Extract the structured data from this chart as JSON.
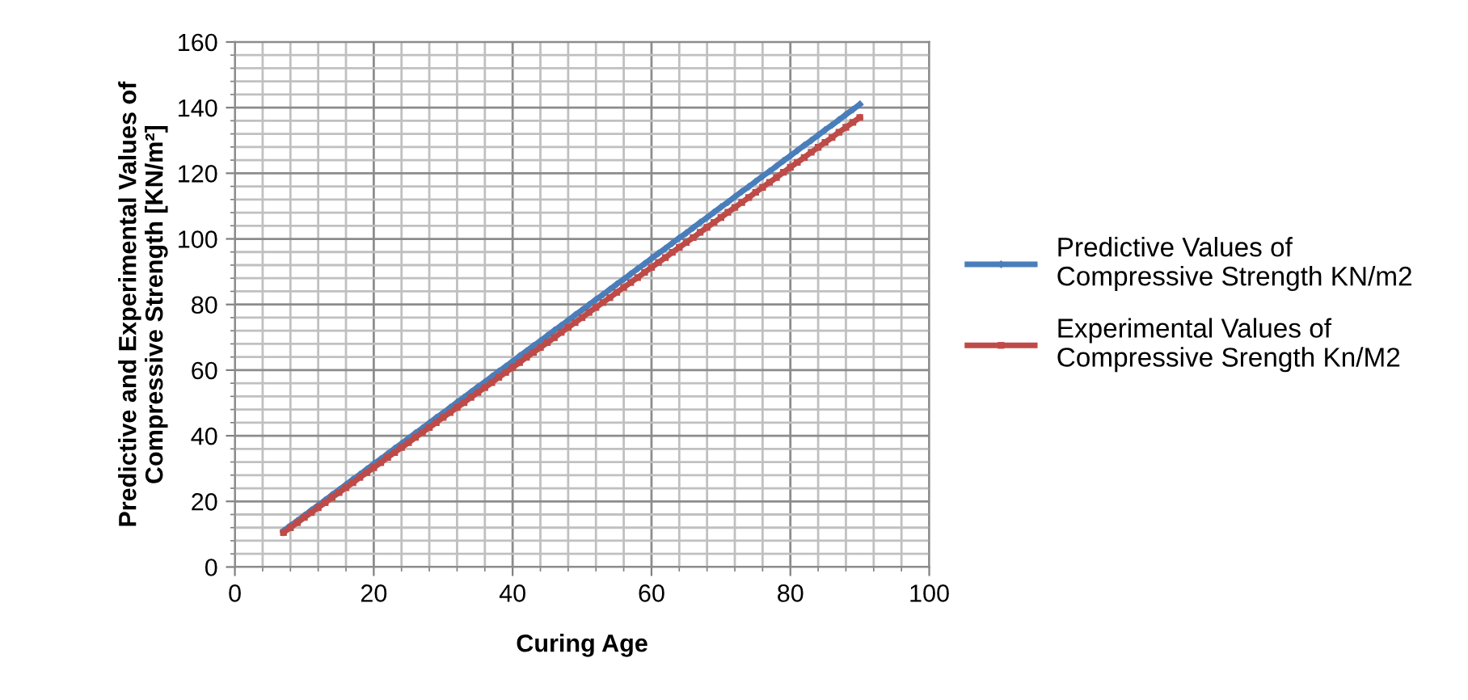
{
  "chart_data": {
    "type": "line",
    "xlabel": "Curing Age",
    "ylabel": "Predictive and Experimental Values of\nCompressive Strength [KN/m²]",
    "x": [
      7,
      8,
      9,
      10,
      11,
      12,
      13,
      14,
      15,
      16,
      17,
      18,
      19,
      20,
      21,
      22,
      23,
      24,
      25,
      26,
      27,
      28,
      29,
      30,
      31,
      32,
      33,
      34,
      35,
      36,
      37,
      38,
      39,
      40,
      41,
      42,
      43,
      44,
      45,
      46,
      47,
      48,
      49,
      50,
      51,
      52,
      53,
      54,
      55,
      56,
      57,
      58,
      59,
      60,
      61,
      62,
      63,
      64,
      65,
      66,
      67,
      68,
      69,
      70,
      71,
      72,
      73,
      74,
      75,
      76,
      77,
      78,
      79,
      80,
      81,
      82,
      83,
      84,
      85,
      86,
      87,
      88,
      89,
      90
    ],
    "series": [
      {
        "name": "Predictive Values of\nCompressive Strength KN/m2",
        "color": "#4a7ebb",
        "marker": "diamond",
        "values": [
          11.0,
          12.6,
          14.1,
          15.7,
          17.3,
          18.8,
          20.4,
          22.0,
          23.5,
          25.1,
          26.7,
          28.2,
          29.8,
          31.4,
          32.9,
          34.5,
          36.1,
          37.6,
          39.2,
          40.8,
          42.3,
          43.9,
          45.5,
          47.0,
          48.6,
          50.2,
          51.7,
          53.3,
          54.9,
          56.4,
          58.0,
          59.6,
          61.1,
          62.7,
          64.3,
          65.8,
          67.4,
          68.9,
          70.5,
          72.1,
          73.6,
          75.2,
          76.8,
          78.3,
          79.9,
          81.5,
          83.0,
          84.6,
          86.2,
          87.7,
          89.3,
          90.9,
          92.4,
          94.0,
          95.6,
          97.1,
          98.7,
          100.3,
          101.8,
          103.4,
          105.0,
          106.5,
          108.1,
          109.7,
          111.2,
          112.8,
          114.4,
          115.9,
          117.5,
          119.1,
          120.6,
          122.2,
          123.8,
          125.3,
          126.9,
          128.5,
          130.0,
          131.6,
          133.2,
          134.7,
          136.3,
          137.9,
          139.4,
          141.0
        ]
      },
      {
        "name": "Experimental Values of\nCompressive Srength Kn/M2",
        "color": "#be4b48",
        "marker": "square",
        "values": [
          10.5,
          12.0,
          13.5,
          15.1,
          16.6,
          18.1,
          19.6,
          21.2,
          22.7,
          24.2,
          25.7,
          27.3,
          28.8,
          30.3,
          31.8,
          33.4,
          34.9,
          36.4,
          37.9,
          39.5,
          41.0,
          42.5,
          44.0,
          45.6,
          47.1,
          48.6,
          50.1,
          51.7,
          53.2,
          54.7,
          56.2,
          57.8,
          59.3,
          60.8,
          62.3,
          63.9,
          65.4,
          66.9,
          68.4,
          69.9,
          71.5,
          73.0,
          74.5,
          76.0,
          77.6,
          79.1,
          80.6,
          82.1,
          83.7,
          85.2,
          86.7,
          88.2,
          89.8,
          91.3,
          92.8,
          94.3,
          95.9,
          97.4,
          98.9,
          100.4,
          102.0,
          103.5,
          105.0,
          106.5,
          108.1,
          109.6,
          111.1,
          112.6,
          114.2,
          115.7,
          117.2,
          118.7,
          120.3,
          121.8,
          123.3,
          124.8,
          126.4,
          127.9,
          129.4,
          130.9,
          132.5,
          134.0,
          135.5,
          137.0
        ]
      }
    ],
    "xlim": [
      0,
      100
    ],
    "xticks": [
      0,
      {
        "value": 4,
        "label": null
      },
      {
        "value": 8,
        "label": null
      },
      {
        "value": 12,
        "label": null
      },
      {
        "value": 16,
        "label": null
      },
      20,
      {
        "value": 24,
        "label": null
      },
      {
        "value": 28,
        "label": null
      },
      {
        "value": 32,
        "label": null
      },
      {
        "value": 36,
        "label": null
      },
      40,
      {
        "value": 44,
        "label": null
      },
      {
        "value": 48,
        "label": null
      },
      {
        "value": 52,
        "label": null
      },
      {
        "value": 56,
        "label": null
      },
      60,
      {
        "value": 64,
        "label": null
      },
      {
        "value": 68,
        "label": null
      },
      {
        "value": 72,
        "label": null
      },
      {
        "value": 76,
        "label": null
      },
      80,
      {
        "value": 84,
        "label": null
      },
      {
        "value": 88,
        "label": null
      },
      {
        "value": 92,
        "label": null
      },
      {
        "value": 96,
        "label": null
      },
      100
    ],
    "ylim": [
      0,
      160
    ],
    "yticks": [
      0,
      {
        "value": 4,
        "label": null
      },
      {
        "value": 8,
        "label": null
      },
      {
        "value": 12,
        "label": null
      },
      {
        "value": 16,
        "label": null
      },
      20,
      {
        "value": 24,
        "label": null
      },
      {
        "value": 28,
        "label": null
      },
      {
        "value": 32,
        "label": null
      },
      {
        "value": 36,
        "label": null
      },
      40,
      {
        "value": 44,
        "label": null
      },
      {
        "value": 48,
        "label": null
      },
      {
        "value": 52,
        "label": null
      },
      {
        "value": 56,
        "label": null
      },
      60,
      {
        "value": 64,
        "label": null
      },
      {
        "value": 68,
        "label": null
      },
      {
        "value": 72,
        "label": null
      },
      {
        "value": 76,
        "label": null
      },
      80,
      {
        "value": 84,
        "label": null
      },
      {
        "value": 88,
        "label": null
      },
      {
        "value": 92,
        "label": null
      },
      {
        "value": 96,
        "label": null
      },
      100,
      {
        "value": 104,
        "label": null
      },
      {
        "value": 108,
        "label": null
      },
      {
        "value": 112,
        "label": null
      },
      {
        "value": 116,
        "label": null
      },
      120,
      {
        "value": 124,
        "label": null
      },
      {
        "value": 128,
        "label": null
      },
      {
        "value": 132,
        "label": null
      },
      {
        "value": 136,
        "label": null
      },
      140,
      {
        "value": 144,
        "label": null
      },
      {
        "value": 148,
        "label": null
      },
      {
        "value": 152,
        "label": null
      },
      {
        "value": 156,
        "label": null
      },
      160
    ],
    "grid": true,
    "legend": "right",
    "line_style": "solid"
  }
}
